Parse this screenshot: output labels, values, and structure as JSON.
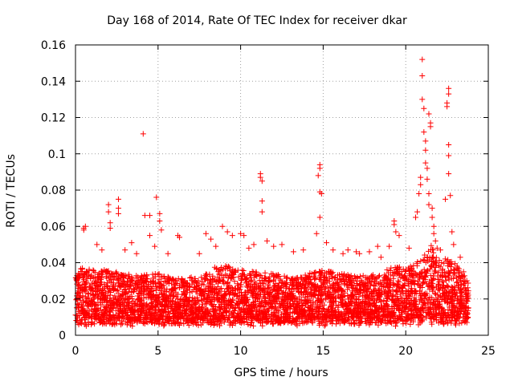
{
  "chart_data": {
    "type": "scatter",
    "title": "Day 168 of 2014, Rate Of TEC Index for receiver dkar",
    "xlabel": "GPS time / hours",
    "ylabel": "ROTI / TECUs",
    "xlim": [
      0,
      25
    ],
    "ylim": [
      0,
      0.16
    ],
    "xticks": [
      "0",
      "5",
      "10",
      "15",
      "20",
      "25"
    ],
    "yticks": [
      "0",
      "0.02",
      "0.04",
      "0.06",
      "0.08",
      "0.1",
      "0.12",
      "0.14",
      "0.16"
    ],
    "xtick_values": [
      0,
      5,
      10,
      15,
      20,
      25
    ],
    "ytick_values": [
      0,
      0.02,
      0.04,
      0.06,
      0.08,
      0.1,
      0.12,
      0.14,
      0.16
    ],
    "grid": true,
    "marker": "+",
    "color": "#ff0000",
    "series": [
      {
        "name": "ROTI",
        "points": [
          [
            0.5,
            0.058
          ],
          [
            0.5,
            0.059
          ],
          [
            0.6,
            0.06
          ],
          [
            1.3,
            0.05
          ],
          [
            1.6,
            0.047
          ],
          [
            2.0,
            0.072
          ],
          [
            2.0,
            0.068
          ],
          [
            2.1,
            0.062
          ],
          [
            2.1,
            0.059
          ],
          [
            2.6,
            0.075
          ],
          [
            2.6,
            0.07
          ],
          [
            2.6,
            0.067
          ],
          [
            3.0,
            0.047
          ],
          [
            3.4,
            0.051
          ],
          [
            3.7,
            0.045
          ],
          [
            4.1,
            0.111
          ],
          [
            4.2,
            0.066
          ],
          [
            4.5,
            0.066
          ],
          [
            4.5,
            0.055
          ],
          [
            4.8,
            0.049
          ],
          [
            4.9,
            0.076
          ],
          [
            5.1,
            0.067
          ],
          [
            5.1,
            0.063
          ],
          [
            5.2,
            0.058
          ],
          [
            5.6,
            0.045
          ],
          [
            6.2,
            0.055
          ],
          [
            6.3,
            0.054
          ],
          [
            7.5,
            0.045
          ],
          [
            7.9,
            0.056
          ],
          [
            8.2,
            0.053
          ],
          [
            8.5,
            0.049
          ],
          [
            8.9,
            0.06
          ],
          [
            9.2,
            0.057
          ],
          [
            9.5,
            0.055
          ],
          [
            10.0,
            0.056
          ],
          [
            10.2,
            0.055
          ],
          [
            10.5,
            0.048
          ],
          [
            10.8,
            0.05
          ],
          [
            11.2,
            0.089
          ],
          [
            11.2,
            0.087
          ],
          [
            11.3,
            0.085
          ],
          [
            11.3,
            0.074
          ],
          [
            11.3,
            0.068
          ],
          [
            11.6,
            0.052
          ],
          [
            12.0,
            0.049
          ],
          [
            12.5,
            0.05
          ],
          [
            13.2,
            0.046
          ],
          [
            13.8,
            0.047
          ],
          [
            14.6,
            0.056
          ],
          [
            14.7,
            0.088
          ],
          [
            14.8,
            0.094
          ],
          [
            14.8,
            0.092
          ],
          [
            14.8,
            0.079
          ],
          [
            14.9,
            0.078
          ],
          [
            14.8,
            0.065
          ],
          [
            15.2,
            0.051
          ],
          [
            15.6,
            0.047
          ],
          [
            16.2,
            0.045
          ],
          [
            16.5,
            0.047
          ],
          [
            17.0,
            0.046
          ],
          [
            17.2,
            0.045
          ],
          [
            17.8,
            0.046
          ],
          [
            18.3,
            0.049
          ],
          [
            18.5,
            0.043
          ],
          [
            19.0,
            0.049
          ],
          [
            19.3,
            0.063
          ],
          [
            19.3,
            0.061
          ],
          [
            19.4,
            0.057
          ],
          [
            19.6,
            0.055
          ],
          [
            20.2,
            0.048
          ],
          [
            20.6,
            0.065
          ],
          [
            20.7,
            0.068
          ],
          [
            20.8,
            0.078
          ],
          [
            20.9,
            0.083
          ],
          [
            20.9,
            0.087
          ],
          [
            21.0,
            0.152
          ],
          [
            21.0,
            0.143
          ],
          [
            21.0,
            0.13
          ],
          [
            21.1,
            0.125
          ],
          [
            21.1,
            0.112
          ],
          [
            21.2,
            0.107
          ],
          [
            21.2,
            0.102
          ],
          [
            21.2,
            0.095
          ],
          [
            21.3,
            0.092
          ],
          [
            21.3,
            0.086
          ],
          [
            21.4,
            0.078
          ],
          [
            21.4,
            0.072
          ],
          [
            21.4,
            0.122
          ],
          [
            21.5,
            0.115
          ],
          [
            21.5,
            0.117
          ],
          [
            21.6,
            0.07
          ],
          [
            21.6,
            0.065
          ],
          [
            21.7,
            0.06
          ],
          [
            21.7,
            0.056
          ],
          [
            21.8,
            0.052
          ],
          [
            21.9,
            0.048
          ],
          [
            22.1,
            0.047
          ],
          [
            22.4,
            0.075
          ],
          [
            22.5,
            0.128
          ],
          [
            22.5,
            0.126
          ],
          [
            22.6,
            0.133
          ],
          [
            22.6,
            0.136
          ],
          [
            22.6,
            0.089
          ],
          [
            22.6,
            0.099
          ],
          [
            22.6,
            0.105
          ],
          [
            22.7,
            0.077
          ],
          [
            22.8,
            0.057
          ],
          [
            22.9,
            0.05
          ],
          [
            23.3,
            0.043
          ],
          [
            23.5,
            0.035
          ]
        ]
      }
    ],
    "band": {
      "x_start": 0.0,
      "x_end": 23.8,
      "floor_low": 0.005,
      "floor_high": 0.01,
      "ceiling_profile": [
        [
          0.0,
          0.038
        ],
        [
          1.0,
          0.036
        ],
        [
          2.0,
          0.036
        ],
        [
          3.0,
          0.034
        ],
        [
          4.0,
          0.033
        ],
        [
          5.0,
          0.034
        ],
        [
          6.0,
          0.031
        ],
        [
          7.0,
          0.032
        ],
        [
          8.0,
          0.034
        ],
        [
          8.5,
          0.038
        ],
        [
          9.0,
          0.039
        ],
        [
          10.0,
          0.036
        ],
        [
          11.0,
          0.035
        ],
        [
          12.0,
          0.034
        ],
        [
          13.0,
          0.032
        ],
        [
          14.0,
          0.034
        ],
        [
          15.0,
          0.036
        ],
        [
          16.0,
          0.034
        ],
        [
          17.0,
          0.033
        ],
        [
          18.0,
          0.034
        ],
        [
          19.0,
          0.037
        ],
        [
          20.0,
          0.038
        ],
        [
          21.0,
          0.042
        ],
        [
          21.5,
          0.05
        ],
        [
          22.0,
          0.044
        ],
        [
          23.0,
          0.04
        ],
        [
          23.8,
          0.03
        ]
      ]
    }
  }
}
